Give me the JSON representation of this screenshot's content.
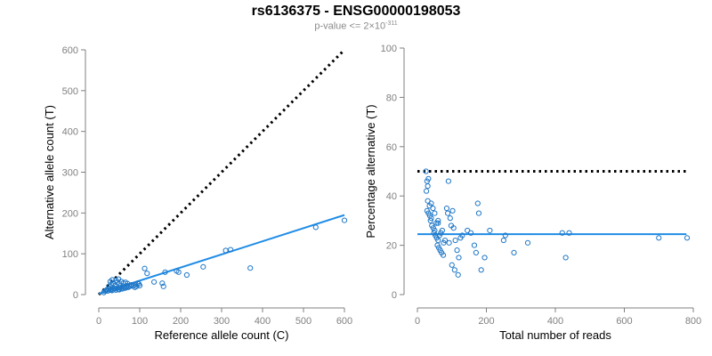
{
  "title": "rs6136375 - ENSG00000198053",
  "subtitle": {
    "prefix": "p-value <= 2",
    "times": "×",
    "base": "10",
    "exponent": "-311"
  },
  "colors": {
    "points": "#1f77c7",
    "fit_line": "#1f8ce6",
    "reference_line": "#000000",
    "axis": "#808080"
  },
  "chart_data": [
    {
      "type": "scatter",
      "xlabel": "Reference allele count (C)",
      "ylabel": "Alternative allele count (T)",
      "xlim": [
        0,
        600
      ],
      "ylim": [
        0,
        600
      ],
      "xticks": [
        "0",
        "100",
        "200",
        "300",
        "400",
        "500",
        "600"
      ],
      "yticks": [
        "0",
        "100",
        "200",
        "300",
        "400",
        "500",
        "600"
      ],
      "grid": false,
      "reference_line": {
        "style": "dotted",
        "x": [
          0,
          600
        ],
        "y": [
          0,
          600
        ]
      },
      "fit_line": {
        "style": "solid",
        "x": [
          0,
          600
        ],
        "y": [
          2,
          195
        ]
      },
      "points": [
        [
          15,
          8
        ],
        [
          18,
          10
        ],
        [
          20,
          12
        ],
        [
          22,
          9
        ],
        [
          25,
          14
        ],
        [
          28,
          11
        ],
        [
          30,
          13
        ],
        [
          32,
          10
        ],
        [
          35,
          12
        ],
        [
          38,
          15
        ],
        [
          40,
          14
        ],
        [
          42,
          11
        ],
        [
          45,
          16
        ],
        [
          48,
          13
        ],
        [
          50,
          12
        ],
        [
          52,
          18
        ],
        [
          55,
          15
        ],
        [
          58,
          14
        ],
        [
          60,
          20
        ],
        [
          62,
          17
        ],
        [
          65,
          16
        ],
        [
          68,
          19
        ],
        [
          70,
          22
        ],
        [
          72,
          18
        ],
        [
          75,
          20
        ],
        [
          78,
          21
        ],
        [
          80,
          24
        ],
        [
          85,
          22
        ],
        [
          88,
          18
        ],
        [
          90,
          25
        ],
        [
          92,
          20
        ],
        [
          95,
          28
        ],
        [
          98,
          26
        ],
        [
          100,
          22
        ],
        [
          25,
          20
        ],
        [
          30,
          25
        ],
        [
          35,
          28
        ],
        [
          40,
          22
        ],
        [
          45,
          30
        ],
        [
          50,
          26
        ],
        [
          55,
          32
        ],
        [
          60,
          28
        ],
        [
          65,
          30
        ],
        [
          70,
          27
        ],
        [
          48,
          38
        ],
        [
          112,
          64
        ],
        [
          118,
          52
        ],
        [
          135,
          31
        ],
        [
          155,
          28
        ],
        [
          158,
          20
        ],
        [
          162,
          55
        ],
        [
          190,
          58
        ],
        [
          195,
          55
        ],
        [
          215,
          48
        ],
        [
          255,
          68
        ],
        [
          310,
          108
        ],
        [
          322,
          110
        ],
        [
          370,
          65
        ],
        [
          530,
          165
        ],
        [
          600,
          182
        ],
        [
          28,
          32
        ],
        [
          33,
          36
        ],
        [
          42,
          35
        ],
        [
          12,
          5
        ]
      ]
    },
    {
      "type": "scatter",
      "xlabel": "Total number of reads",
      "ylabel": "Percentage alternative (T)",
      "xlim": [
        0,
        800
      ],
      "ylim": [
        0,
        100
      ],
      "xticks": [
        "0",
        "200",
        "400",
        "600",
        "800"
      ],
      "yticks": [
        "0",
        "20",
        "40",
        "60",
        "80",
        "100"
      ],
      "grid": false,
      "reference_line": {
        "style": "dotted",
        "x": [
          0,
          780
        ],
        "y": [
          50,
          50
        ]
      },
      "fit_line": {
        "style": "solid",
        "x": [
          0,
          780
        ],
        "y": [
          24.5,
          24.5
        ]
      },
      "points": [
        [
          25,
          50
        ],
        [
          28,
          46
        ],
        [
          30,
          44
        ],
        [
          32,
          47
        ],
        [
          26,
          42
        ],
        [
          30,
          38
        ],
        [
          35,
          36
        ],
        [
          40,
          37
        ],
        [
          28,
          34
        ],
        [
          32,
          33
        ],
        [
          36,
          32
        ],
        [
          40,
          31
        ],
        [
          45,
          35
        ],
        [
          50,
          33
        ],
        [
          38,
          30
        ],
        [
          42,
          28
        ],
        [
          46,
          27
        ],
        [
          50,
          26
        ],
        [
          55,
          29
        ],
        [
          60,
          30
        ],
        [
          48,
          25
        ],
        [
          52,
          24
        ],
        [
          56,
          23
        ],
        [
          60,
          22
        ],
        [
          64,
          24
        ],
        [
          68,
          25
        ],
        [
          72,
          26
        ],
        [
          76,
          21
        ],
        [
          58,
          20
        ],
        [
          62,
          19
        ],
        [
          66,
          18
        ],
        [
          70,
          17
        ],
        [
          80,
          22
        ],
        [
          85,
          35
        ],
        [
          88,
          33
        ],
        [
          90,
          46
        ],
        [
          95,
          31
        ],
        [
          98,
          28
        ],
        [
          102,
          34
        ],
        [
          105,
          27
        ],
        [
          110,
          22
        ],
        [
          115,
          18
        ],
        [
          100,
          12
        ],
        [
          108,
          10
        ],
        [
          118,
          8
        ],
        [
          120,
          15
        ],
        [
          125,
          23
        ],
        [
          130,
          24
        ],
        [
          145,
          26
        ],
        [
          155,
          25
        ],
        [
          165,
          20
        ],
        [
          170,
          17
        ],
        [
          175,
          37
        ],
        [
          178,
          33
        ],
        [
          185,
          10
        ],
        [
          195,
          15
        ],
        [
          210,
          26
        ],
        [
          250,
          22
        ],
        [
          255,
          24
        ],
        [
          280,
          17
        ],
        [
          320,
          21
        ],
        [
          420,
          25
        ],
        [
          430,
          15
        ],
        [
          440,
          25
        ],
        [
          700,
          23
        ],
        [
          782,
          23
        ],
        [
          75,
          16
        ],
        [
          92,
          21
        ],
        [
          60,
          29
        ]
      ]
    }
  ]
}
